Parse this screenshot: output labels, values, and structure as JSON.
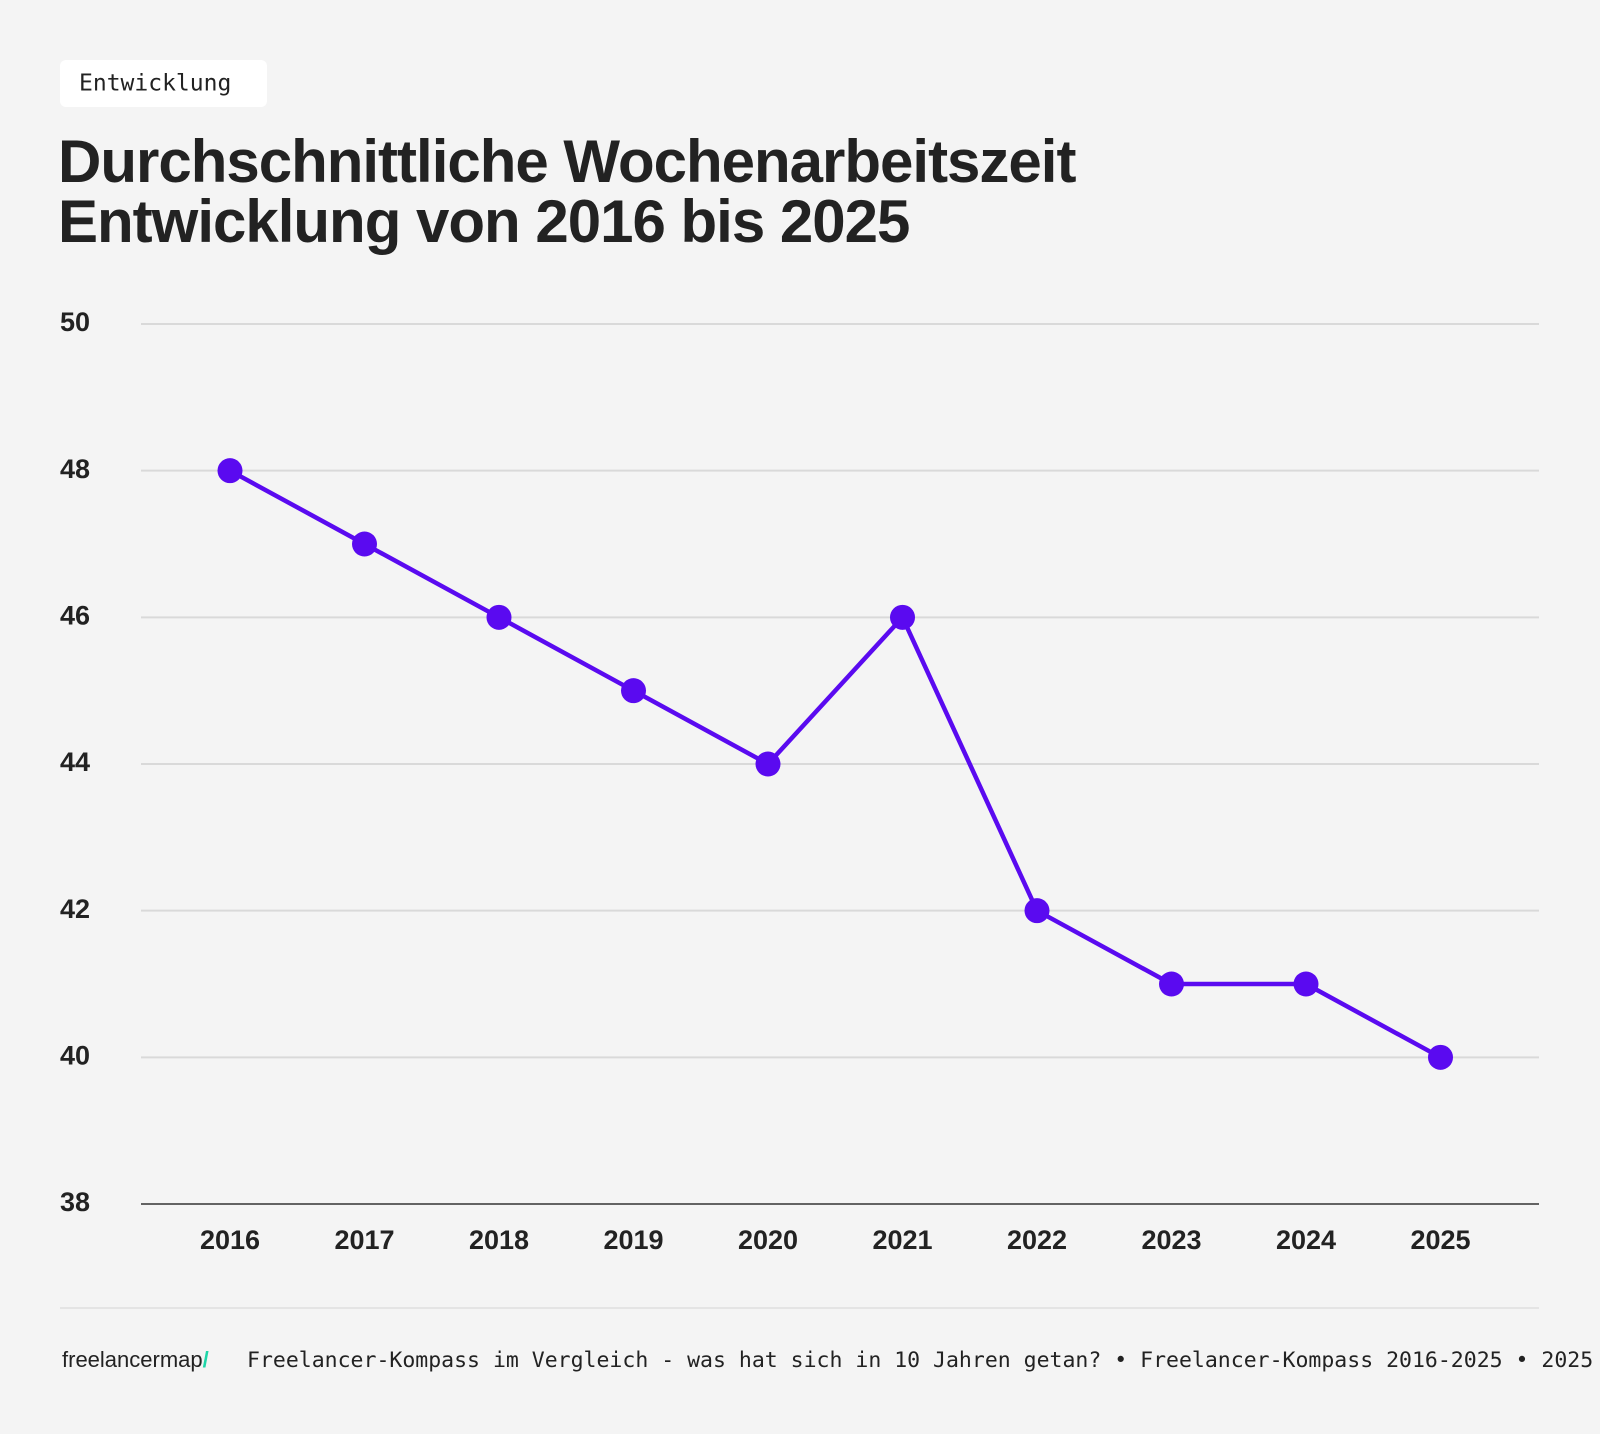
{
  "chart_data": {
    "type": "line",
    "tag": "Entwicklung",
    "title": [
      "Durchschnittliche Wochenarbeitszeit",
      "Entwicklung von 2016 bis 2025"
    ],
    "categories": [
      "2016",
      "2017",
      "2018",
      "2019",
      "2020",
      "2021",
      "2022",
      "2023",
      "2024",
      "2025"
    ],
    "values": [
      48,
      47,
      46,
      45,
      44,
      46,
      42,
      41,
      41,
      40
    ],
    "color": "#5a0af0",
    "ylim": [
      38,
      50
    ],
    "yticks": [
      38,
      40,
      42,
      44,
      46,
      48,
      50
    ],
    "grid": true,
    "footer": {
      "brand": "freelancermap",
      "brand_mark": "/",
      "source": "Freelancer-Kompass im Vergleich - was hat sich in 10 Jahren getan? • Freelancer-Kompass 2016-2025 • 2025"
    }
  }
}
